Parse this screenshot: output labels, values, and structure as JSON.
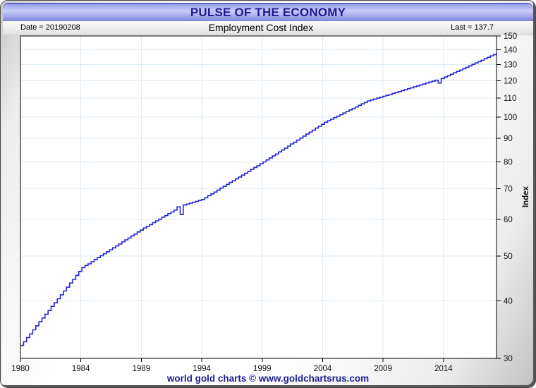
{
  "header": {
    "title": "PULSE OF THE ECONOMY"
  },
  "subheader": {
    "date_label": "Date = 20190208",
    "series_title": "Employment Cost Index",
    "last_label": "Last = 137.7"
  },
  "footer": {
    "credit": "world gold charts © www.goldchartsrus.com"
  },
  "colors": {
    "line": "#2323dc",
    "grid": "#dcebf5",
    "plot_border": "#000000",
    "title_text": "#1c1c92",
    "footer_text": "#1b1b92",
    "banner": "#a9adee"
  },
  "chart_data": {
    "type": "line",
    "style": "step-after",
    "title": "Employment Cost Index",
    "ylabel": "Index",
    "y_scale": "log",
    "ylim": [
      30,
      150
    ],
    "y_ticks": [
      30,
      40,
      50,
      60,
      70,
      80,
      90,
      100,
      110,
      120,
      130,
      140,
      150
    ],
    "x_tick_labels": [
      "1980",
      "1984",
      "1989",
      "1994",
      "1999",
      "2004",
      "2009",
      "2014"
    ],
    "frequency": "quarterly",
    "x_period_start": "1980Q1",
    "x_period_end": "2018Q4",
    "date_stamp": "20190208",
    "last_value": 137.7,
    "grid": true,
    "legend": "none",
    "values": [
      32.0,
      32.6,
      33.3,
      33.9,
      34.6,
      35.3,
      36.0,
      36.7,
      37.4,
      38.1,
      38.9,
      39.6,
      40.4,
      41.2,
      42.0,
      42.8,
      43.7,
      44.5,
      45.4,
      46.3,
      47.2,
      47.7,
      48.1,
      48.6,
      49.1,
      49.6,
      50.1,
      50.6,
      51.1,
      51.6,
      52.1,
      52.6,
      53.1,
      53.7,
      54.2,
      54.7,
      55.3,
      55.8,
      56.4,
      56.9,
      57.5,
      58.0,
      58.5,
      59.1,
      59.6,
      60.1,
      60.7,
      61.2,
      61.8,
      62.3,
      62.9,
      63.9,
      61.5,
      64.5,
      64.8,
      65.1,
      65.4,
      65.7,
      66.0,
      66.3,
      66.9,
      67.6,
      68.2,
      68.8,
      69.5,
      70.2,
      70.8,
      71.5,
      72.2,
      72.8,
      73.5,
      74.2,
      74.9,
      75.6,
      76.3,
      77.1,
      77.8,
      78.5,
      79.3,
      80.0,
      80.8,
      81.6,
      82.4,
      83.2,
      84.1,
      84.9,
      85.7,
      86.6,
      87.5,
      88.3,
      89.2,
      90.1,
      91.0,
      91.9,
      92.8,
      93.7,
      94.7,
      95.6,
      96.5,
      97.5,
      98.3,
      99.0,
      99.8,
      100.5,
      101.3,
      102.1,
      102.9,
      103.7,
      104.4,
      105.2,
      106.1,
      106.9,
      107.7,
      108.5,
      109.0,
      109.5,
      110.0,
      110.5,
      111.0,
      111.5,
      112.0,
      112.6,
      113.1,
      113.6,
      114.2,
      114.7,
      115.3,
      115.8,
      116.4,
      116.9,
      117.5,
      118.0,
      118.6,
      119.2,
      119.7,
      120.3,
      118.6,
      121.3,
      122.2,
      123.0,
      123.9,
      124.8,
      125.7,
      126.5,
      127.4,
      128.3,
      129.2,
      130.2,
      131.1,
      132.0,
      132.9,
      133.9,
      134.8,
      135.8,
      136.7,
      137.7
    ]
  }
}
